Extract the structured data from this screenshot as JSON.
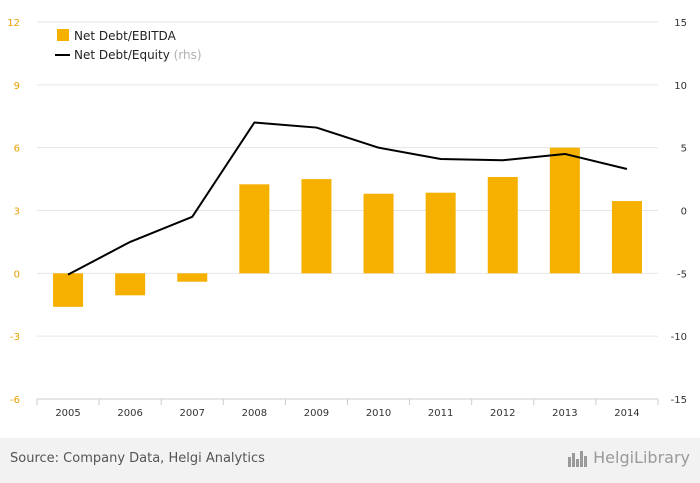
{
  "chart_data": {
    "type": "bar+line",
    "categories": [
      "2005",
      "2006",
      "2007",
      "2008",
      "2009",
      "2010",
      "2011",
      "2012",
      "2013",
      "2014"
    ],
    "series": [
      {
        "name": "Net Debt/EBITDA",
        "type": "bar",
        "axis": "left",
        "color": "#f5b000",
        "values": [
          -1.6,
          -1.05,
          -0.4,
          4.25,
          4.5,
          3.8,
          3.85,
          4.6,
          6.0,
          3.45
        ]
      },
      {
        "name": "Net Debt/Equity",
        "name_suffix": "(rhs)",
        "type": "line",
        "axis": "right",
        "color": "#000000",
        "values": [
          -5.1,
          -2.5,
          -0.5,
          7.0,
          6.6,
          5.0,
          4.1,
          4.0,
          4.5,
          3.3
        ]
      }
    ],
    "y_left": {
      "min": -6,
      "max": 12,
      "ticks": [
        12,
        9,
        6,
        3,
        0,
        -3,
        -6
      ],
      "tick_color": "#e8a000"
    },
    "y_right": {
      "min": -15,
      "max": 15,
      "ticks": [
        15,
        10,
        5,
        0,
        -5,
        -10,
        -15
      ]
    },
    "grid": true,
    "legend": "top-left"
  },
  "footer": {
    "source": "Source: Company Data, Helgi Analytics",
    "brand": "HelgiLibrary"
  }
}
